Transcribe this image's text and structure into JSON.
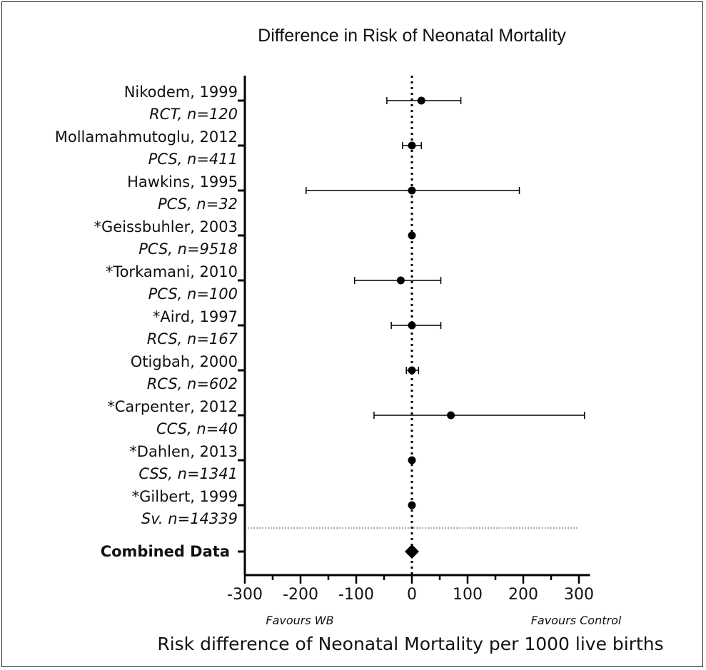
{
  "chart_data": {
    "type": "forest",
    "title": "Difference in Risk of Neonatal Mortality",
    "xlabel": "Risk difference of Neonatal Mortality per 1000 live births",
    "xlim": [
      -320,
      320
    ],
    "xticks": [
      -300,
      -200,
      -100,
      0,
      100,
      200,
      300
    ],
    "xtick_labels": [
      "-300",
      "-200",
      "-100",
      "0",
      "100",
      "200",
      "300"
    ],
    "favours_left": "Favours WB",
    "favours_right": "Favours Control",
    "reference_line": 0,
    "studies": [
      {
        "name": "Nikodem, 1999",
        "design": "RCT, n=120",
        "estimate": 17,
        "lower": -45,
        "upper": 88
      },
      {
        "name": "Mollamahmutoglu, 2012",
        "design": "PCS, n=411",
        "estimate": 0,
        "lower": -17,
        "upper": 17
      },
      {
        "name": "Hawkins, 1995",
        "design": "PCS, n=32",
        "estimate": 0,
        "lower": -190,
        "upper": 193
      },
      {
        "name": "*Geissbuhler, 2003",
        "design": "PCS, n=9518",
        "estimate": 0,
        "lower": 0,
        "upper": 0
      },
      {
        "name": "*Torkamani, 2010",
        "design": "PCS, n=100",
        "estimate": -20,
        "lower": -103,
        "upper": 52
      },
      {
        "name": "*Aird, 1997",
        "design": "RCS, n=167",
        "estimate": 0,
        "lower": -37,
        "upper": 52
      },
      {
        "name": "Otigbah, 2000",
        "design": "RCS, n=602",
        "estimate": 0,
        "lower": -10,
        "upper": 12
      },
      {
        "name": "*Carpenter, 2012",
        "design": "CCS, n=40",
        "estimate": 70,
        "lower": -68,
        "upper": 310
      },
      {
        "name": "*Dahlen, 2013",
        "design": "CSS, n=1341",
        "estimate": 0,
        "lower": 0,
        "upper": 0
      },
      {
        "name": "*Gilbert, 1999",
        "design": "Sv. n=14339",
        "estimate": 0,
        "lower": 0,
        "upper": 0
      }
    ],
    "combined": {
      "label": "Combined Data",
      "estimate": 0
    }
  }
}
